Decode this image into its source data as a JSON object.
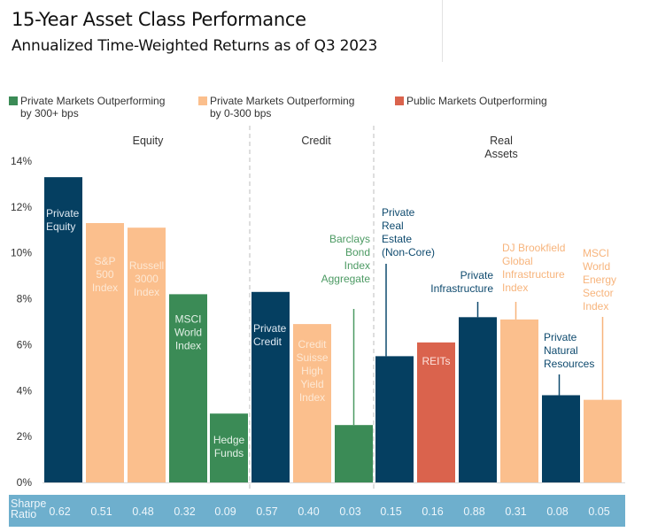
{
  "header": {
    "title": "15-Year Asset Class Performance",
    "subtitle": "Annualized Time-Weighted Returns as of Q3 2023"
  },
  "colors": {
    "private": "#053f61",
    "green": "#3b8b56",
    "peach": "#fbbf8d",
    "red": "#da634d",
    "band": "#6eafcd",
    "divider": "#c8c8c8"
  },
  "legend": [
    {
      "line1": "Private Markets Outperforming",
      "line2": "by 300+ bps",
      "color": "#3b8b56"
    },
    {
      "line1": "Private Markets Outperforming",
      "line2": "by 0-300 bps",
      "color": "#fbbf8d"
    },
    {
      "line1": "Public Markets Outperforming",
      "line2": "",
      "color": "#da634d"
    }
  ],
  "chart_data": {
    "type": "bar",
    "title": "15-Year Asset Class Performance",
    "subtitle": "Annualized Time-Weighted Returns as of Q3 2023",
    "xlabel": "",
    "ylabel": "",
    "ylim": [
      0,
      14
    ],
    "yticks": [
      "0%",
      "2%",
      "4%",
      "6%",
      "8%",
      "10%",
      "12%",
      "14%"
    ],
    "grid": false,
    "legend_position": "top",
    "groups": [
      {
        "label": "Equity",
        "label_lines": [
          "Equity"
        ]
      },
      {
        "label": "Credit",
        "label_lines": [
          "Credit"
        ]
      },
      {
        "label": "Real Assets",
        "label_lines": [
          "Real",
          "Assets"
        ]
      }
    ],
    "categories": [
      "Private Equity",
      "S&P 500 Index",
      "Russell 3000 Index",
      "MSCI World Index",
      "Hedge Funds",
      "Private Credit",
      "Credit Suisse High Yield Index",
      "Barclays Bond Index Aggregate",
      "Private Real Estate (Non-Core)",
      "REITs",
      "Private Infrastructure",
      "DJ Brookfield Global Infrastructure Index",
      "Private Natural Resources",
      "MSCI World Energy Sector Index"
    ],
    "bars": [
      {
        "name": "Private Equity",
        "lines": [
          "Private",
          "Equity"
        ],
        "value": 13.3,
        "group": 0,
        "kind": "private",
        "label_pos": "inside-top",
        "sharpe": "0.62"
      },
      {
        "name": "S&P 500 Index",
        "lines": [
          "S&P",
          "500",
          "Index"
        ],
        "value": 11.3,
        "group": 0,
        "kind": "peach",
        "label_pos": "inside",
        "sharpe": "0.51"
      },
      {
        "name": "Russell 3000 Index",
        "lines": [
          "Russell",
          "3000",
          "Index"
        ],
        "value": 11.1,
        "group": 0,
        "kind": "peach",
        "label_pos": "inside",
        "sharpe": "0.48"
      },
      {
        "name": "MSCI World Index",
        "lines": [
          "MSCI",
          "World",
          "Index"
        ],
        "value": 8.2,
        "group": 0,
        "kind": "green",
        "label_pos": "inside",
        "sharpe": "0.32"
      },
      {
        "name": "Hedge Funds",
        "lines": [
          "Hedge",
          "Funds"
        ],
        "value": 3.0,
        "group": 0,
        "kind": "green",
        "label_pos": "inside-low",
        "sharpe": "0.09"
      },
      {
        "name": "Private Credit",
        "lines": [
          "Private",
          "Credit"
        ],
        "value": 8.3,
        "group": 1,
        "kind": "private",
        "label_pos": "inside-top",
        "sharpe": "0.57"
      },
      {
        "name": "Credit Suisse High Yield Index",
        "lines": [
          "Credit",
          "Suisse",
          "High",
          "Yield",
          "Index"
        ],
        "value": 6.9,
        "group": 1,
        "kind": "peach",
        "label_pos": "inside",
        "sharpe": "0.40"
      },
      {
        "name": "Barclays Bond Index Aggregate",
        "lines": [
          "Barclays",
          "Bond",
          "Index",
          "Aggregate"
        ],
        "value": 2.5,
        "group": 1,
        "kind": "green",
        "label_pos": "above-right",
        "sharpe": "0.03"
      },
      {
        "name": "Private Real Estate (Non-Core)",
        "lines": [
          "Private",
          "Real",
          "Estate",
          "(Non-Core)"
        ],
        "value": 5.5,
        "group": 2,
        "kind": "private",
        "label_pos": "above-left",
        "sharpe": "0.15"
      },
      {
        "name": "REITs",
        "lines": [
          "REITs"
        ],
        "value": 6.1,
        "group": 2,
        "kind": "red",
        "label_pos": "inside-top",
        "sharpe": "0.16"
      },
      {
        "name": "Private Infrastructure",
        "lines": [
          "Private",
          "Infrastructure"
        ],
        "value": 7.2,
        "group": 2,
        "kind": "private",
        "label_pos": "above-right",
        "sharpe": "0.88"
      },
      {
        "name": "DJ Brookfield Global Infrastructure Index",
        "lines": [
          "DJ Brookfield",
          "Global",
          "Infrastructure",
          "Index"
        ],
        "value": 7.1,
        "group": 2,
        "kind": "peach",
        "label_pos": "above-left",
        "sharpe": "0.31"
      },
      {
        "name": "Private Natural Resources",
        "lines": [
          "Private",
          "Natural",
          "Resources"
        ],
        "value": 3.8,
        "group": 2,
        "kind": "private",
        "label_pos": "above-left",
        "sharpe": "0.08"
      },
      {
        "name": "MSCI World Energy Sector Index",
        "lines": [
          "MSCI",
          "World",
          "Energy",
          "Sector",
          "Index"
        ],
        "value": 3.6,
        "group": 2,
        "kind": "peach",
        "label_pos": "above-left",
        "sharpe": "0.05"
      }
    ],
    "sharpe_label_lines": [
      "Sharpe",
      "Ratio"
    ]
  }
}
